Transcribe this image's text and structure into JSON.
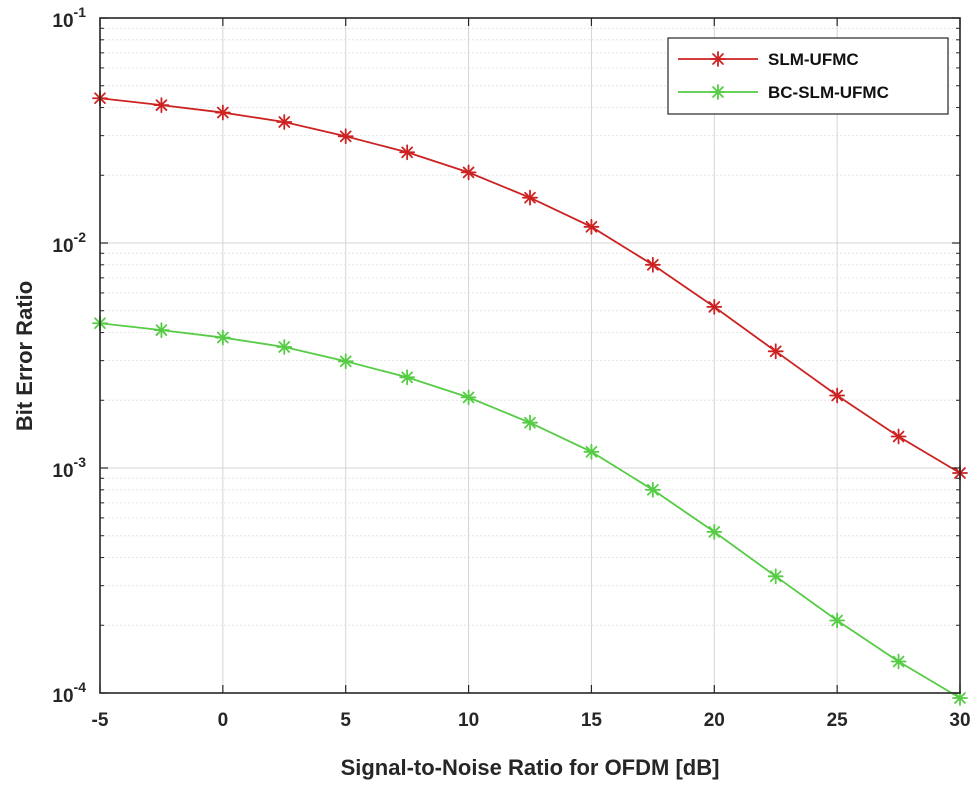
{
  "chart_data": {
    "type": "line",
    "title": "",
    "xlabel": "Signal-to-Noise Ratio for OFDM [dB]",
    "ylabel": "Bit Error Ratio",
    "xlim": [
      -5,
      30
    ],
    "ylim": [
      0.0001,
      0.1
    ],
    "yscale": "log",
    "grid": true,
    "legend_position": "top-right",
    "x_ticks": [
      -5,
      0,
      5,
      10,
      15,
      20,
      25,
      30
    ],
    "x_tick_labels": [
      "-5",
      "0",
      "5",
      "10",
      "15",
      "20",
      "25",
      "30"
    ],
    "y_ticks": [
      0.0001,
      0.001,
      0.01,
      0.1
    ],
    "y_tick_labels": [
      {
        "base": "10",
        "exp": "-4"
      },
      {
        "base": "10",
        "exp": "-3"
      },
      {
        "base": "10",
        "exp": "-2"
      },
      {
        "base": "10",
        "exp": "-1"
      }
    ],
    "x": [
      -5,
      -2.5,
      0,
      2.5,
      5,
      7.5,
      10,
      12.5,
      15,
      17.5,
      20,
      22.5,
      25,
      27.5,
      30
    ],
    "series": [
      {
        "name": "SLM-UFMC",
        "color": "#cc2222",
        "marker": "asterisk",
        "values": [
          0.044,
          0.041,
          0.038,
          0.0345,
          0.0298,
          0.0253,
          0.0206,
          0.0159,
          0.0118,
          0.008,
          0.0052,
          0.0033,
          0.0021,
          0.00138,
          0.00095
        ]
      },
      {
        "name": "BC-SLM-UFMC",
        "color": "#55cc44",
        "marker": "asterisk",
        "values": [
          0.0044,
          0.0041,
          0.0038,
          0.00345,
          0.00298,
          0.00253,
          0.00206,
          0.00159,
          0.00118,
          0.0008,
          0.00052,
          0.00033,
          0.00021,
          0.000138,
          9.5e-05
        ]
      }
    ]
  }
}
